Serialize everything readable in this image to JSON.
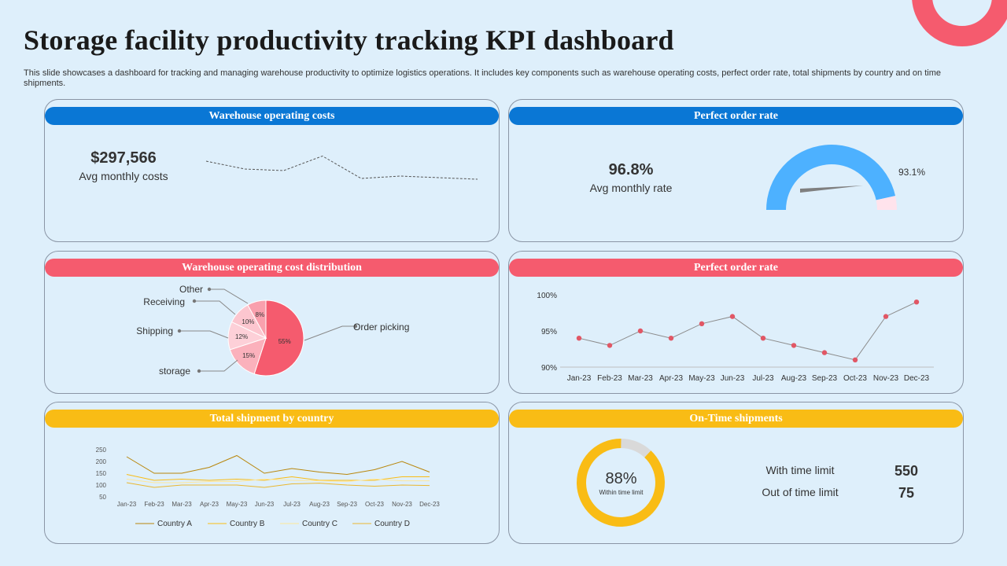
{
  "page": {
    "title": "Storage facility productivity tracking KPI dashboard",
    "subtitle": "This slide showcases a dashboard for tracking and managing warehouse productivity to optimize logistics operations. It includes key components such as warehouse operating costs, perfect order rate, total shipments by country and on time shipments."
  },
  "colors": {
    "blue": "#0a77d5",
    "red": "#f55b6e",
    "yellow": "#f9bc15",
    "gauge": "#4db1ff"
  },
  "panels": {
    "costs": {
      "title": "Warehouse operating costs",
      "value": "$297,566",
      "caption": "Avg monthly costs"
    },
    "rate": {
      "title": "Perfect order rate",
      "value": "96.8%",
      "caption": "Avg monthly rate",
      "gauge_label": "93.1%"
    },
    "distribution": {
      "title": "Warehouse operating cost distribution"
    },
    "rate_trend": {
      "title": "Perfect order rate"
    },
    "shipments": {
      "title": "Total shipment by country"
    },
    "ontime": {
      "title": "On-Time shipments",
      "donut_value": "88%",
      "donut_caption": "Within time limit",
      "rows": [
        {
          "label": "With time limit",
          "value": "550"
        },
        {
          "label": "Out of time limit",
          "value": "75"
        }
      ]
    }
  },
  "chart_data": [
    {
      "id": "costs_sparkline",
      "type": "line",
      "title": "",
      "values": [
        62,
        42,
        38,
        75,
        18,
        24,
        20,
        16
      ],
      "ylim": [
        0,
        100
      ],
      "style": "dashed"
    },
    {
      "id": "rate_gauge",
      "type": "gauge",
      "value": 93.1,
      "range": [
        0,
        100
      ]
    },
    {
      "id": "cost_distribution",
      "type": "pie",
      "labels": [
        "Order picking",
        "storage",
        "Shipping",
        "Receiving",
        "Other"
      ],
      "values": [
        55,
        15,
        12,
        10,
        8
      ],
      "value_labels": [
        "55%",
        "15%",
        "12%",
        "10%",
        "8%"
      ]
    },
    {
      "id": "rate_trend",
      "type": "line",
      "categories": [
        "Jan-23",
        "Feb-23",
        "Mar-23",
        "Apr-23",
        "May-23",
        "Jun-23",
        "Jul-23",
        "Aug-23",
        "Sep-23",
        "Oct-23",
        "Nov-23",
        "Dec-23"
      ],
      "values": [
        94,
        93,
        95,
        94,
        96,
        97,
        94,
        93,
        92,
        91,
        97,
        99
      ],
      "ylim": [
        90,
        100
      ],
      "yticks": [
        "90%",
        "95%",
        "100%"
      ],
      "ytick_values": [
        90,
        95,
        100
      ]
    },
    {
      "id": "shipments_by_country",
      "type": "line",
      "categories": [
        "Jan-23",
        "Feb-23",
        "Mar-23",
        "Apr-23",
        "May-23",
        "Jun-23",
        "Jul-23",
        "Aug-23",
        "Sep-23",
        "Oct-23",
        "Nov-23",
        "Dec-23"
      ],
      "yticks": [
        50,
        100,
        150,
        200,
        250
      ],
      "ylim": [
        50,
        250
      ],
      "series": [
        {
          "name": "Country A",
          "color": "#b8860b",
          "values": [
            220,
            150,
            150,
            175,
            225,
            150,
            170,
            155,
            145,
            165,
            200,
            155
          ]
        },
        {
          "name": "Country B",
          "color": "#f9bc15",
          "values": [
            145,
            120,
            125,
            120,
            125,
            120,
            135,
            120,
            120,
            120,
            135,
            135
          ]
        },
        {
          "name": "Country C",
          "color": "#ffe79a",
          "values": [
            125,
            110,
            110,
            115,
            115,
            125,
            120,
            118,
            115,
            125,
            118,
            118
          ]
        },
        {
          "name": "Country D",
          "color": "#e9b730",
          "values": [
            110,
            90,
            100,
            100,
            100,
            90,
            105,
            108,
            100,
            95,
            100,
            98
          ]
        }
      ]
    },
    {
      "id": "ontime_donut",
      "type": "pie",
      "labels": [
        "Within time limit",
        "Out of time limit"
      ],
      "values": [
        88,
        12
      ]
    }
  ]
}
